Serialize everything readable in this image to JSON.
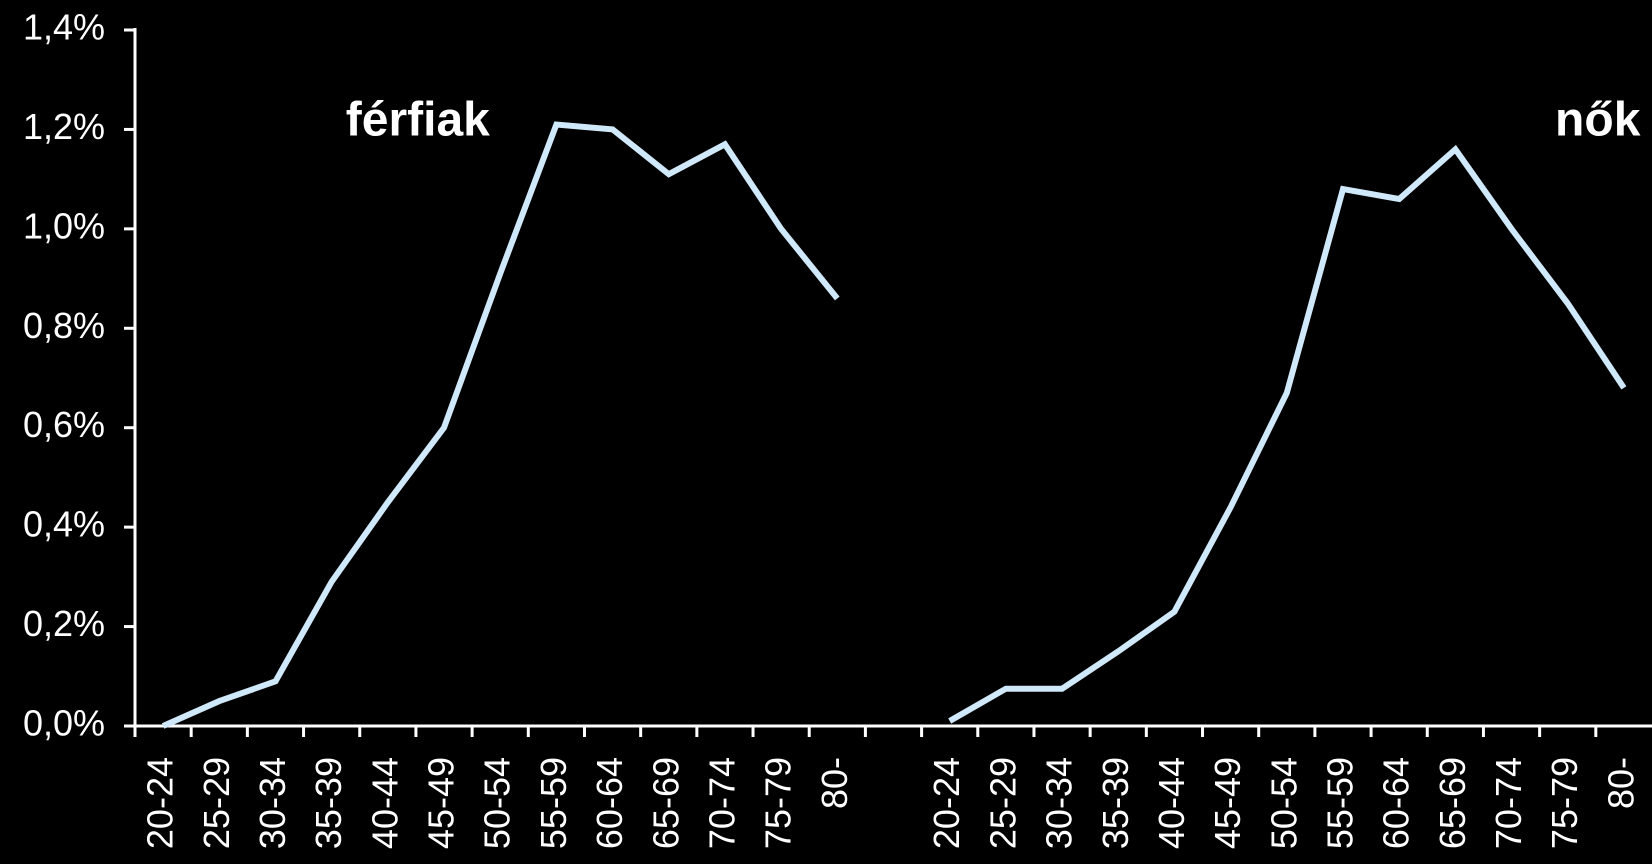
{
  "chart_data": {
    "type": "line",
    "categories": [
      "20-24",
      "25-29",
      "30-34",
      "35-39",
      "40-44",
      "45-49",
      "50-54",
      "55-59",
      "60-64",
      "65-69",
      "70-74",
      "75-79",
      "80-",
      null,
      "20-24",
      "25-29",
      "30-34",
      "35-39",
      "40-44",
      "45-49",
      "50-54",
      "55-59",
      "60-64",
      "65-69",
      "70-74",
      "75-79",
      "80-"
    ],
    "values": [
      0.0,
      0.05,
      0.09,
      0.29,
      0.45,
      0.6,
      0.91,
      1.21,
      1.2,
      1.11,
      1.17,
      1.0,
      0.86,
      null,
      0.01,
      0.075,
      0.075,
      0.15,
      0.23,
      0.44,
      0.67,
      1.08,
      1.06,
      1.16,
      1.0,
      0.85,
      0.68
    ],
    "color": "#cfe8fa",
    "ylim": [
      0,
      1.4
    ],
    "yticks": [
      {
        "value": 0,
        "label": "0,0%"
      },
      {
        "value": 0.2,
        "label": "0,2%"
      },
      {
        "value": 0.4,
        "label": "0,4%"
      },
      {
        "value": 0.6,
        "label": "0,6%"
      },
      {
        "value": 0.8,
        "label": "0,8%"
      },
      {
        "value": 1.0,
        "label": "1,0%"
      },
      {
        "value": 1.2,
        "label": "1,2%"
      },
      {
        "value": 1.4,
        "label": "1,4%"
      }
    ],
    "annotations": [
      {
        "text": "férfiak",
        "category": 4
      },
      {
        "text": "nők",
        "category": 25
      }
    ]
  }
}
